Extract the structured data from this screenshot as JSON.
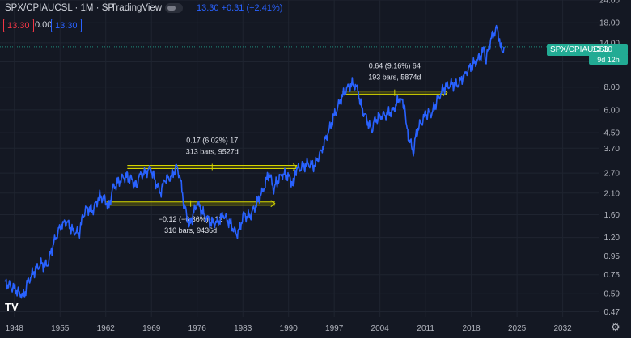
{
  "header": {
    "symbol": "SPX/CPIAUCSL · 1M · SP",
    "platform": "· TradingView",
    "change": "13.30  +0.31 (+2.41%)",
    "chip_sell": "13.30",
    "chip_spread": "0.00",
    "chip_buy": "13.30"
  },
  "price_label": {
    "symbol": "SPX/CPIAUCSL",
    "price": "13.30",
    "countdown": "9d 12h"
  },
  "colors": {
    "background": "#141823",
    "line": "#2962ff",
    "measure": "#d4d400",
    "accent": "#22ab94",
    "sell": "#f23645"
  },
  "chart_data": {
    "type": "line",
    "y_scale": "log",
    "ylim": [
      0.44,
      24
    ],
    "xlim": [
      1945.8,
      2037.5
    ],
    "y_ticks": [
      "24.00",
      "18.00",
      "14.00",
      "11.00",
      "8.00",
      "6.00",
      "4.50",
      "3.70",
      "2.70",
      "2.10",
      "1.60",
      "1.20",
      "0.95",
      "0.75",
      "0.59",
      "0.47"
    ],
    "x_ticks": [
      "1948",
      "1955",
      "1962",
      "1969",
      "1976",
      "1983",
      "1990",
      "1997",
      "2004",
      "2011",
      "2018",
      "2025",
      "2032"
    ],
    "series": [
      {
        "x": [
          1946.5,
          1947,
          1948,
          1949,
          1949.5,
          1950,
          1951,
          1952,
          1953,
          1954,
          1955,
          1955.5,
          1956,
          1957,
          1957.9,
          1958.5,
          1959,
          1960,
          1961,
          1961.9,
          1962.5,
          1963,
          1964,
          1965,
          1966,
          1966.8,
          1967,
          1968,
          1968.9,
          1969.5,
          1970.4,
          1971,
          1972,
          1972.9,
          1973.5,
          1974,
          1974.8,
          1975.5,
          1976,
          1977,
          1978,
          1979,
          1980,
          1981,
          1982,
          1982.6,
          1983,
          1984,
          1985,
          1986,
          1987,
          1987.8,
          1988,
          1989,
          1990,
          1990.8,
          1991,
          1992,
          1993,
          1994,
          1995,
          1996,
          1997,
          1998,
          1999,
          2000,
          2000.7,
          2001,
          2002,
          2002.8,
          2003,
          2004,
          2005,
          2006,
          2007,
          2007.8,
          2008,
          2008.5,
          2009.2,
          2009.5,
          2010,
          2011,
          2012,
          2013,
          2014,
          2015,
          2016,
          2017,
          2018,
          2019,
          2020,
          2020.2,
          2020.5,
          2021,
          2021.5,
          2022,
          2022.5,
          2022.8,
          2023
        ],
        "y": [
          0.69,
          0.66,
          0.63,
          0.58,
          0.57,
          0.68,
          0.78,
          0.86,
          0.84,
          1.1,
          1.38,
          1.45,
          1.46,
          1.3,
          1.27,
          1.55,
          1.75,
          1.68,
          2.02,
          1.95,
          1.75,
          2.2,
          2.45,
          2.6,
          2.5,
          2.25,
          2.55,
          2.75,
          2.85,
          2.5,
          2.1,
          2.45,
          2.6,
          2.95,
          2.45,
          1.8,
          1.4,
          1.65,
          1.85,
          1.62,
          1.45,
          1.45,
          1.58,
          1.45,
          1.25,
          1.35,
          1.6,
          1.55,
          1.8,
          2.15,
          2.7,
          2.2,
          2.35,
          2.65,
          2.6,
          2.3,
          2.8,
          2.9,
          3.05,
          2.95,
          3.6,
          4.4,
          5.6,
          6.8,
          8.0,
          8.3,
          7.6,
          6.4,
          5.3,
          4.5,
          5.1,
          5.6,
          5.6,
          6.0,
          6.9,
          6.3,
          5.1,
          4.1,
          3.5,
          4.4,
          4.9,
          5.6,
          5.8,
          7.1,
          8.0,
          8.3,
          8.2,
          9.5,
          10.4,
          11.3,
          12.9,
          10.8,
          12.6,
          14.8,
          15.8,
          16.8,
          13.2,
          12.5,
          13.3
        ]
      }
    ],
    "annotations": [
      {
        "label_line1": "0.17 (6.02%) 17",
        "label_line2": "313 bars, 9527d",
        "start": [
          1965.3,
          2.92
        ],
        "end": [
          1991.3,
          2.92
        ]
      },
      {
        "label_line1": "−0.12 (−6.36%) −12",
        "label_line2": "310 bars, 9436d",
        "start": [
          1962.1,
          1.84
        ],
        "end": [
          1987.9,
          1.84
        ]
      },
      {
        "label_line1": "0.64 (9.16%) 64",
        "label_line2": "193 bars, 5874d",
        "start": [
          1998.2,
          7.45
        ],
        "end": [
          2014.3,
          7.45
        ]
      }
    ]
  }
}
